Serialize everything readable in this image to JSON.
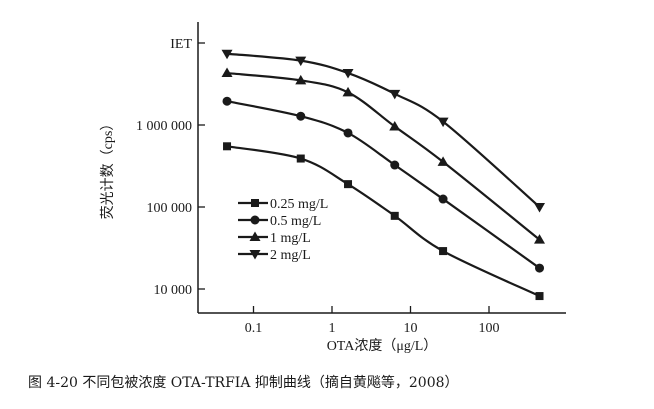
{
  "chart_data": {
    "type": "line",
    "title": "",
    "xlabel": "OTA浓度（μg/L）",
    "ylabel": "荧光计数（cps）",
    "xscale": "log",
    "yscale": "log",
    "xlim": [
      0.025,
      900
    ],
    "ylim": [
      5000,
      10000000
    ],
    "xticks": [
      0.1,
      1,
      10,
      100
    ],
    "xtick_labels": [
      "0.1",
      "1",
      "10",
      "100"
    ],
    "yticks": [
      10000,
      100000,
      1000000,
      10000000
    ],
    "ytick_labels": [
      "10 000",
      "100 000",
      "1 000 000",
      "IET"
    ],
    "grid": false,
    "legend_position": "lower-left",
    "x": [
      0.046,
      0.4,
      1.6,
      6.3,
      26,
      440
    ],
    "series": [
      {
        "name": "0.25 mg/L",
        "marker": "square",
        "values": [
          550000,
          390000,
          190000,
          78000,
          29000,
          8200
        ]
      },
      {
        "name": "0.5 mg/L",
        "marker": "circle",
        "values": [
          1950000,
          1280000,
          800000,
          325000,
          125000,
          18000
        ]
      },
      {
        "name": "1 mg/L",
        "marker": "triangle-up",
        "values": [
          4300000,
          3500000,
          2500000,
          960000,
          355000,
          40000
        ]
      },
      {
        "name": "2 mg/L",
        "marker": "triangle-down",
        "values": [
          7400000,
          6100000,
          4300000,
          2400000,
          1100000,
          100000
        ]
      }
    ],
    "caption": "图 4-20   不同包被浓度 OTA-TRFIA 抑制曲线（摘自黄飚等，2008）",
    "color": "#1a1a1a"
  }
}
